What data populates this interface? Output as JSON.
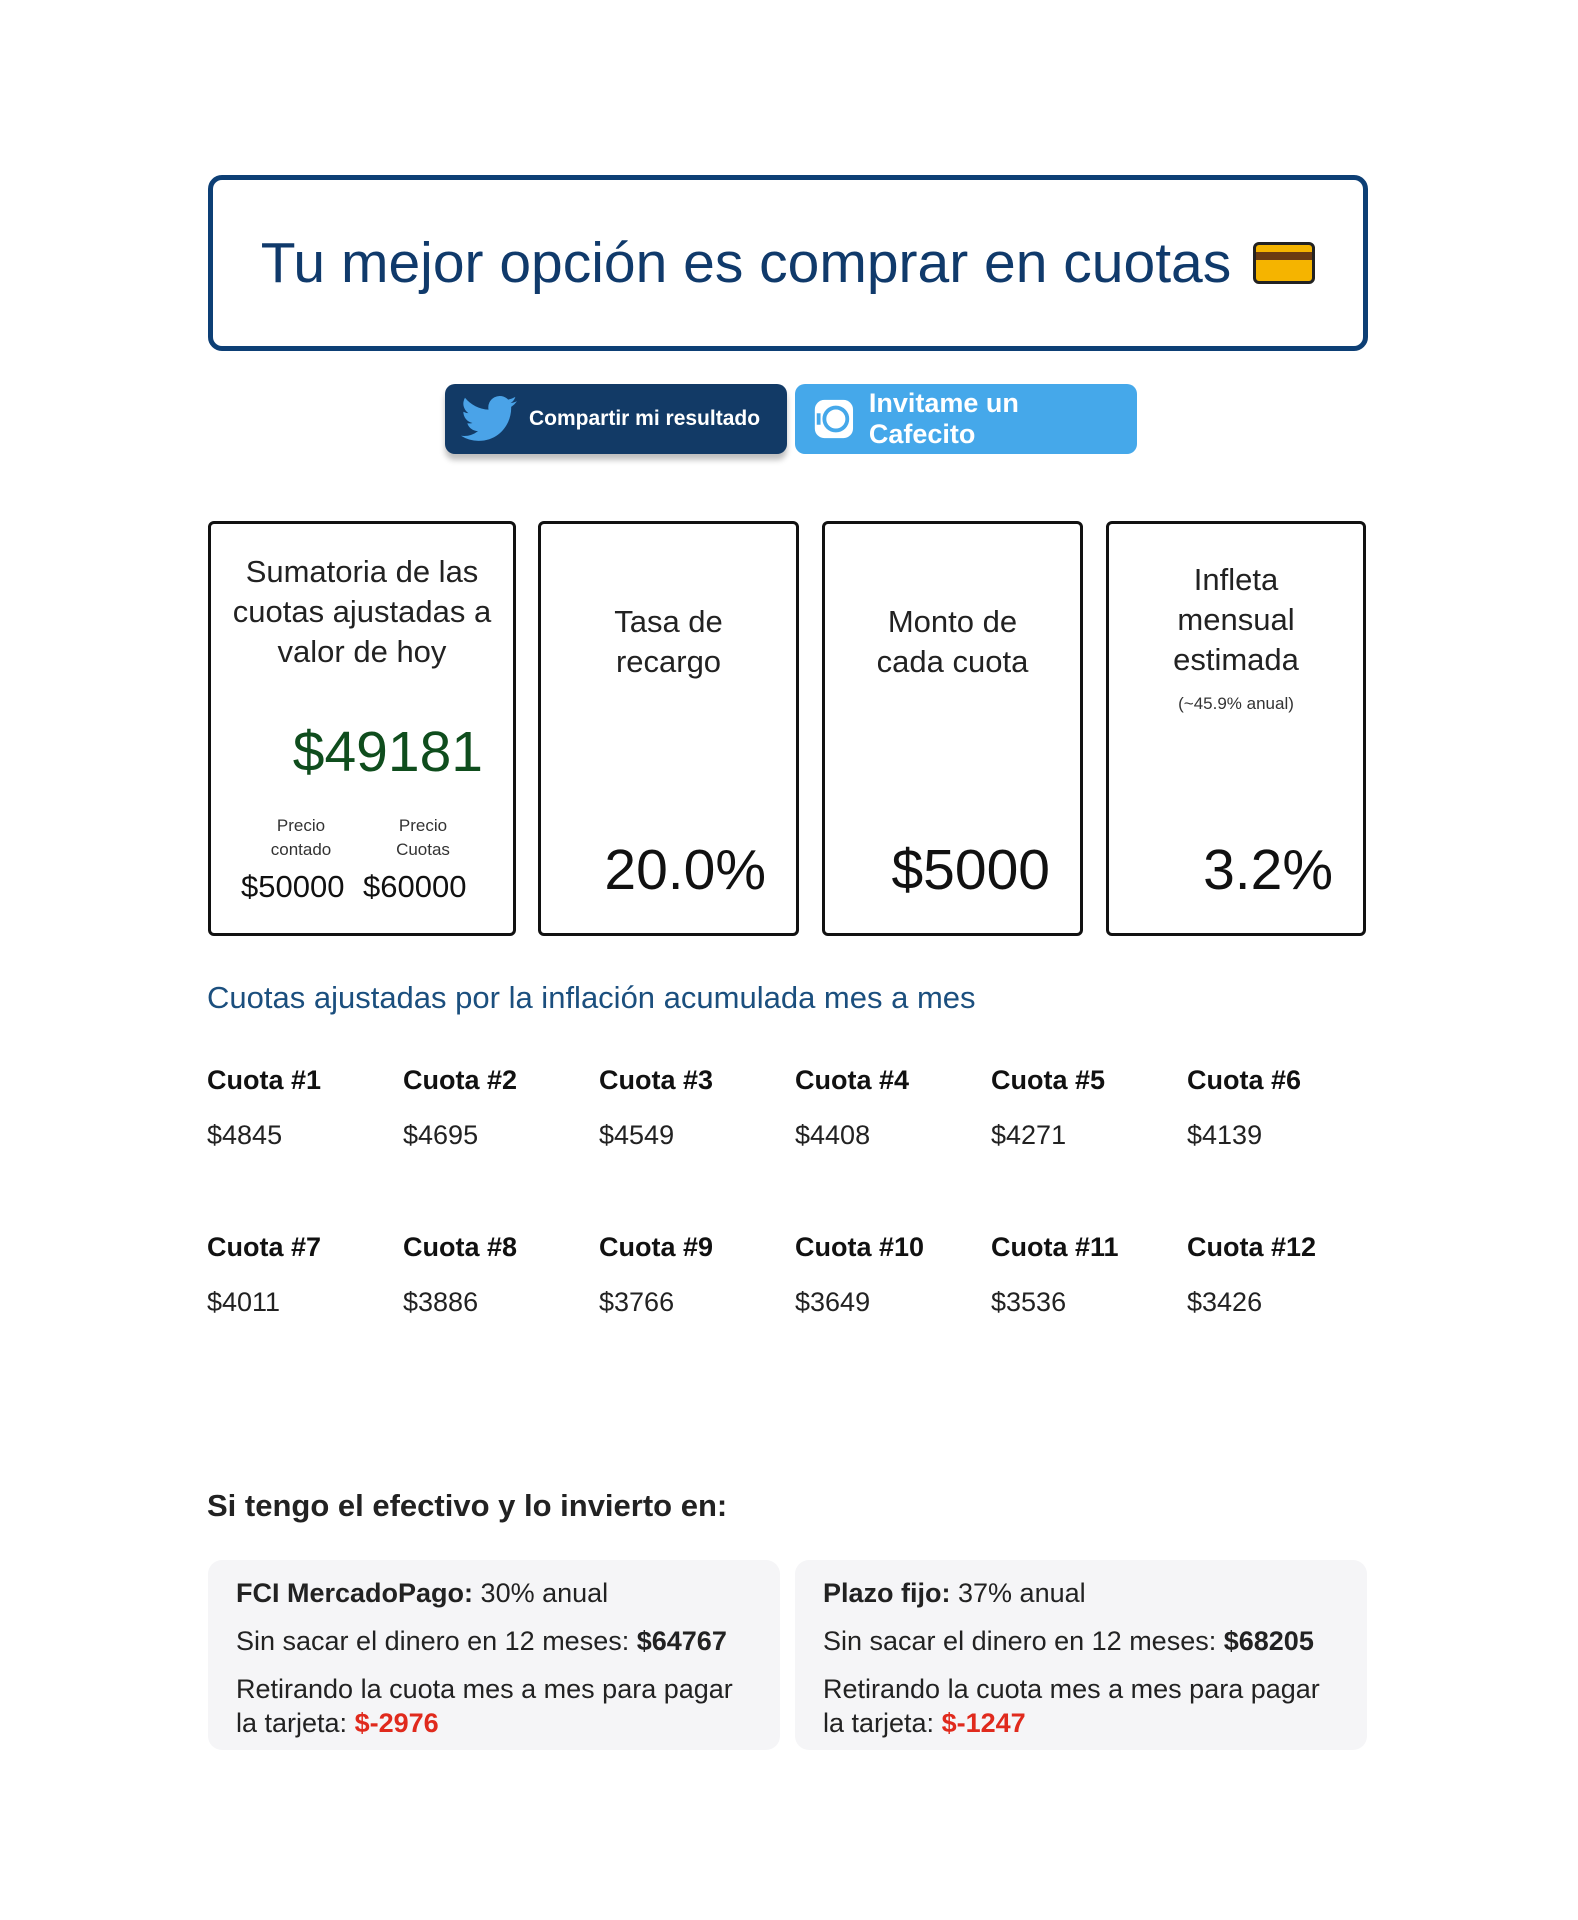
{
  "result": {
    "title": "Tu mejor opción es comprar en cuotas",
    "icon": "credit-card-icon"
  },
  "buttons": {
    "share": "Compartir mi resultado",
    "cafecito": "Invitame un Cafecito"
  },
  "stats": {
    "sum": {
      "label": "Sumatoria de las cuotas ajustadas a valor de hoy",
      "value": "$49181",
      "value_color": "#0f4d1d",
      "cash_label": "Precio contado",
      "cash_value": "$50000",
      "installments_label": "Precio Cuotas",
      "installments_value": "$60000"
    },
    "rate": {
      "label": "Tasa de recargo",
      "value": "20.0%"
    },
    "amount": {
      "label": "Monto de cada cuota",
      "value": "$5000"
    },
    "inflation": {
      "label": "Infleta mensual estimada",
      "note": "(~45.9% anual)",
      "value": "3.2%"
    }
  },
  "installments_title": "Cuotas ajustadas por la inflación acumulada mes a mes",
  "installments": [
    {
      "label": "Cuota #1",
      "value": "$4845"
    },
    {
      "label": "Cuota #2",
      "value": "$4695"
    },
    {
      "label": "Cuota #3",
      "value": "$4549"
    },
    {
      "label": "Cuota #4",
      "value": "$4408"
    },
    {
      "label": "Cuota #5",
      "value": "$4271"
    },
    {
      "label": "Cuota #6",
      "value": "$4139"
    },
    {
      "label": "Cuota #7",
      "value": "$4011"
    },
    {
      "label": "Cuota #8",
      "value": "$3886"
    },
    {
      "label": "Cuota #9",
      "value": "$3766"
    },
    {
      "label": "Cuota #10",
      "value": "$3649"
    },
    {
      "label": "Cuota #11",
      "value": "$3536"
    },
    {
      "label": "Cuota #12",
      "value": "$3426"
    }
  ],
  "invest": {
    "title": "Si tengo el efectivo y lo invierto en:",
    "options": [
      {
        "name": "FCI MercadoPago:",
        "rate": "30% anual",
        "keep_label": "Sin sacar el dinero en 12 meses:",
        "keep_value": "$64767",
        "withdraw_label": "Retirando la cuota mes a mes para pagar la tarjeta:",
        "withdraw_value": "$-2976"
      },
      {
        "name": "Plazo fijo:",
        "rate": "37% anual",
        "keep_label": "Sin sacar el dinero en 12 meses:",
        "keep_value": "$68205",
        "withdraw_label": "Retirando la cuota mes a mes para pagar la tarjeta:",
        "withdraw_value": "$-1247"
      }
    ]
  },
  "colors": {
    "primary": "#0d3f75",
    "twitter_button": "#123a66",
    "cafecito_button": "#45a8ea",
    "negative": "#e02a1d",
    "positive": "#0f4d1d"
  }
}
